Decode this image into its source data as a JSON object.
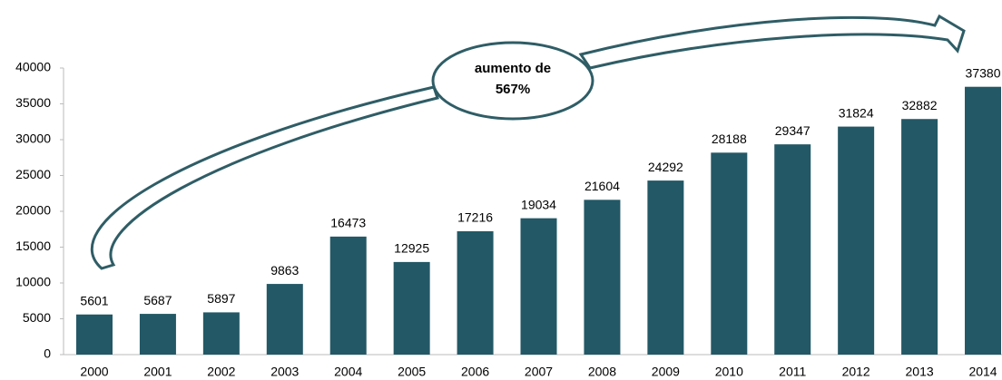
{
  "chart_data": {
    "type": "bar",
    "categories": [
      "2000",
      "2001",
      "2002",
      "2003",
      "2004",
      "2005",
      "2006",
      "2007",
      "2008",
      "2009",
      "2010",
      "2011",
      "2012",
      "2013",
      "2014"
    ],
    "values": [
      5601,
      5687,
      5897,
      9863,
      16473,
      12925,
      17216,
      19034,
      21604,
      24292,
      28188,
      29347,
      31824,
      32882,
      37380
    ],
    "color": "#235866",
    "ylim": [
      0,
      40000
    ],
    "yticks": [
      0,
      5000,
      10000,
      15000,
      20000,
      25000,
      30000,
      35000,
      40000
    ],
    "grid": false,
    "annotation": [
      "aumento de",
      "567%"
    ]
  }
}
